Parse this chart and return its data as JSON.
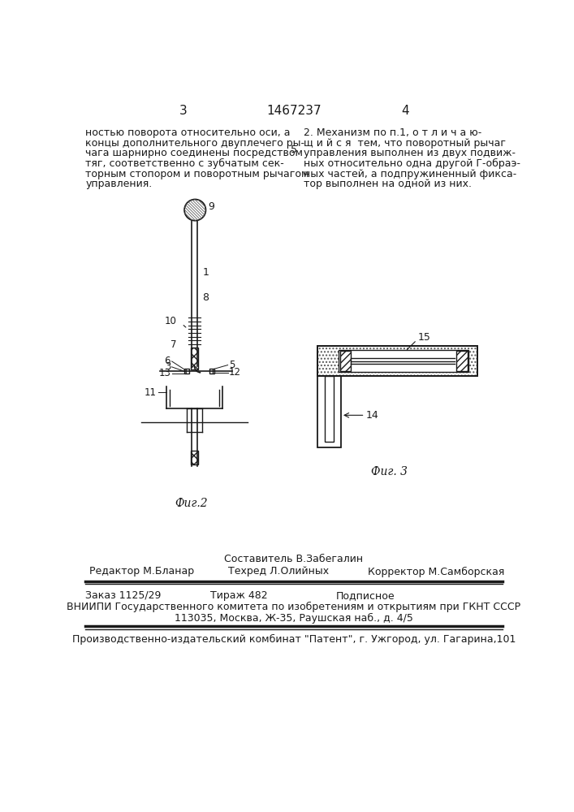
{
  "page_color": "#ffffff",
  "header_left_num": "3",
  "header_center": "1467237",
  "header_right_num": "4",
  "left_text": [
    "ностью поворота относительно оси, а",
    "концы дополнительного двуплечего ры-",
    "чага шарнирно соединены посредством",
    "тяг, соответственно с зубчатым сек-",
    "торным стопором и поворотным рычагом",
    "управления."
  ],
  "right_text": [
    "2. Механизм по п.1, о т л и ч а ю-",
    "щ и й с я  тем, что поворотный рычаг",
    "управления выполнен из двух подвиж-",
    "ных относительно одна другой Г-обраэ-",
    "ных частей, а подпружиненный фикса-",
    "тор выполнен на одной из них."
  ],
  "col5_marker": "5",
  "fig2_label": "Фиг.2",
  "fig3_label": "Фиг. 3",
  "footer_author": "Составитель В.Забегалин",
  "footer_editor": "Редактор М.Бланар",
  "footer_tech": "Техред Л.Олийных",
  "footer_corrector": "Корректор М.Самборская",
  "footer_order": "Заказ 1125/29",
  "footer_tirazh": "Тираж 482",
  "footer_podpisnoe": "Подписное",
  "footer_vniipи": "ВНИИПИ Государственного комитета по изобретениям и открытиям при ГКНТ СССР",
  "footer_address": "113035, Москва, Ж-35, Раушская наб., д. 4/5",
  "footer_patent": "Производственно-издательский комбинат \"Патент\", г. Ужгород, ул. Гагарина,101"
}
